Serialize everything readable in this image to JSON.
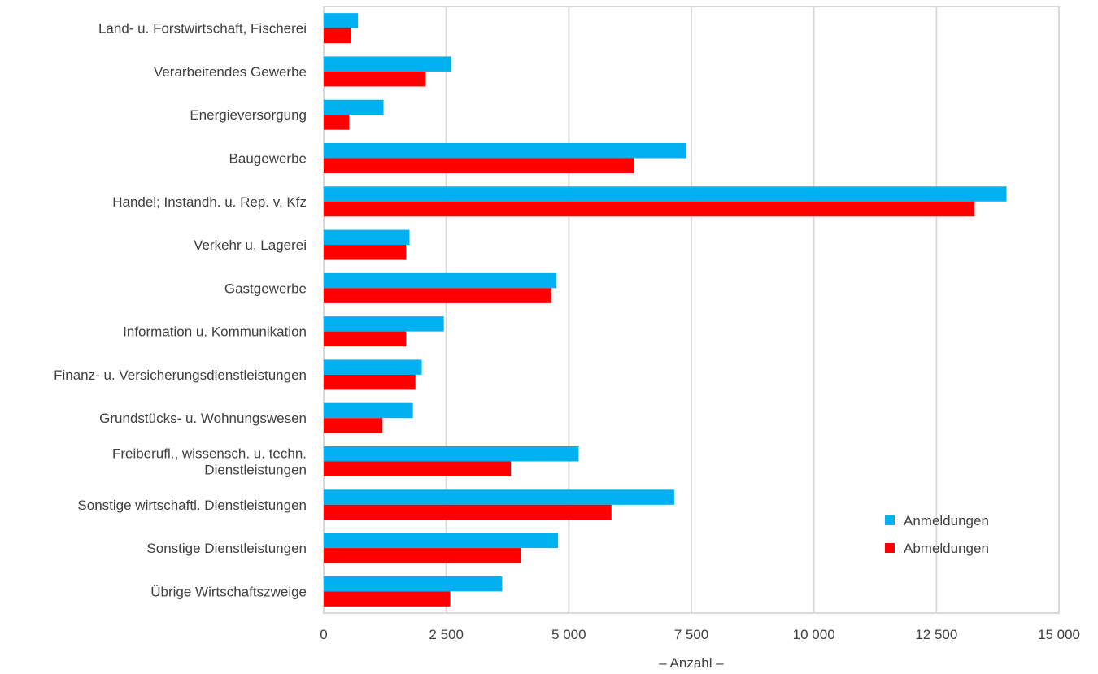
{
  "chart_data": {
    "type": "bar",
    "orientation": "horizontal",
    "categories": [
      "Land- u. Forstwirtschaft, Fischerei",
      "Verarbeitendes Gewerbe",
      "Energieversorgung",
      "Baugewerbe",
      "Handel; Instandh. u. Rep. v. Kfz",
      "Verkehr u. Lagerei",
      "Gastgewerbe",
      "Information u. Kommunikation",
      "Finanz- u. Versicherungsdienstleistungen",
      "Grundstücks- u. Wohnungswesen",
      "Freiberufl., wissensch. u. techn.\nDienstleistungen",
      "Sonstige wirtschaftl. Dienstleistungen",
      "Sonstige Dienstleistungen",
      "Übrige Wirtschaftszweige"
    ],
    "series": [
      {
        "name": "Anmeldungen",
        "color": "#00b0f0",
        "values": [
          700,
          2600,
          1220,
          7400,
          13930,
          1750,
          4750,
          2450,
          2000,
          1820,
          5200,
          7150,
          4780,
          3640
        ]
      },
      {
        "name": "Abmeldungen",
        "color": "#ff0000",
        "values": [
          560,
          2080,
          520,
          6330,
          13280,
          1680,
          4650,
          1680,
          1870,
          1200,
          3820,
          5870,
          4020,
          2580
        ]
      }
    ],
    "xlabel": "– Anzahl –",
    "xlim": [
      0,
      15000
    ],
    "xticks": [
      0,
      2500,
      5000,
      7500,
      10000,
      12500,
      15000
    ],
    "xtick_labels": [
      "0",
      "2 500",
      "5 000",
      "7 500",
      "10 000",
      "12 500",
      "15 000"
    ],
    "grid": true,
    "legend_position": "bottom-right"
  }
}
